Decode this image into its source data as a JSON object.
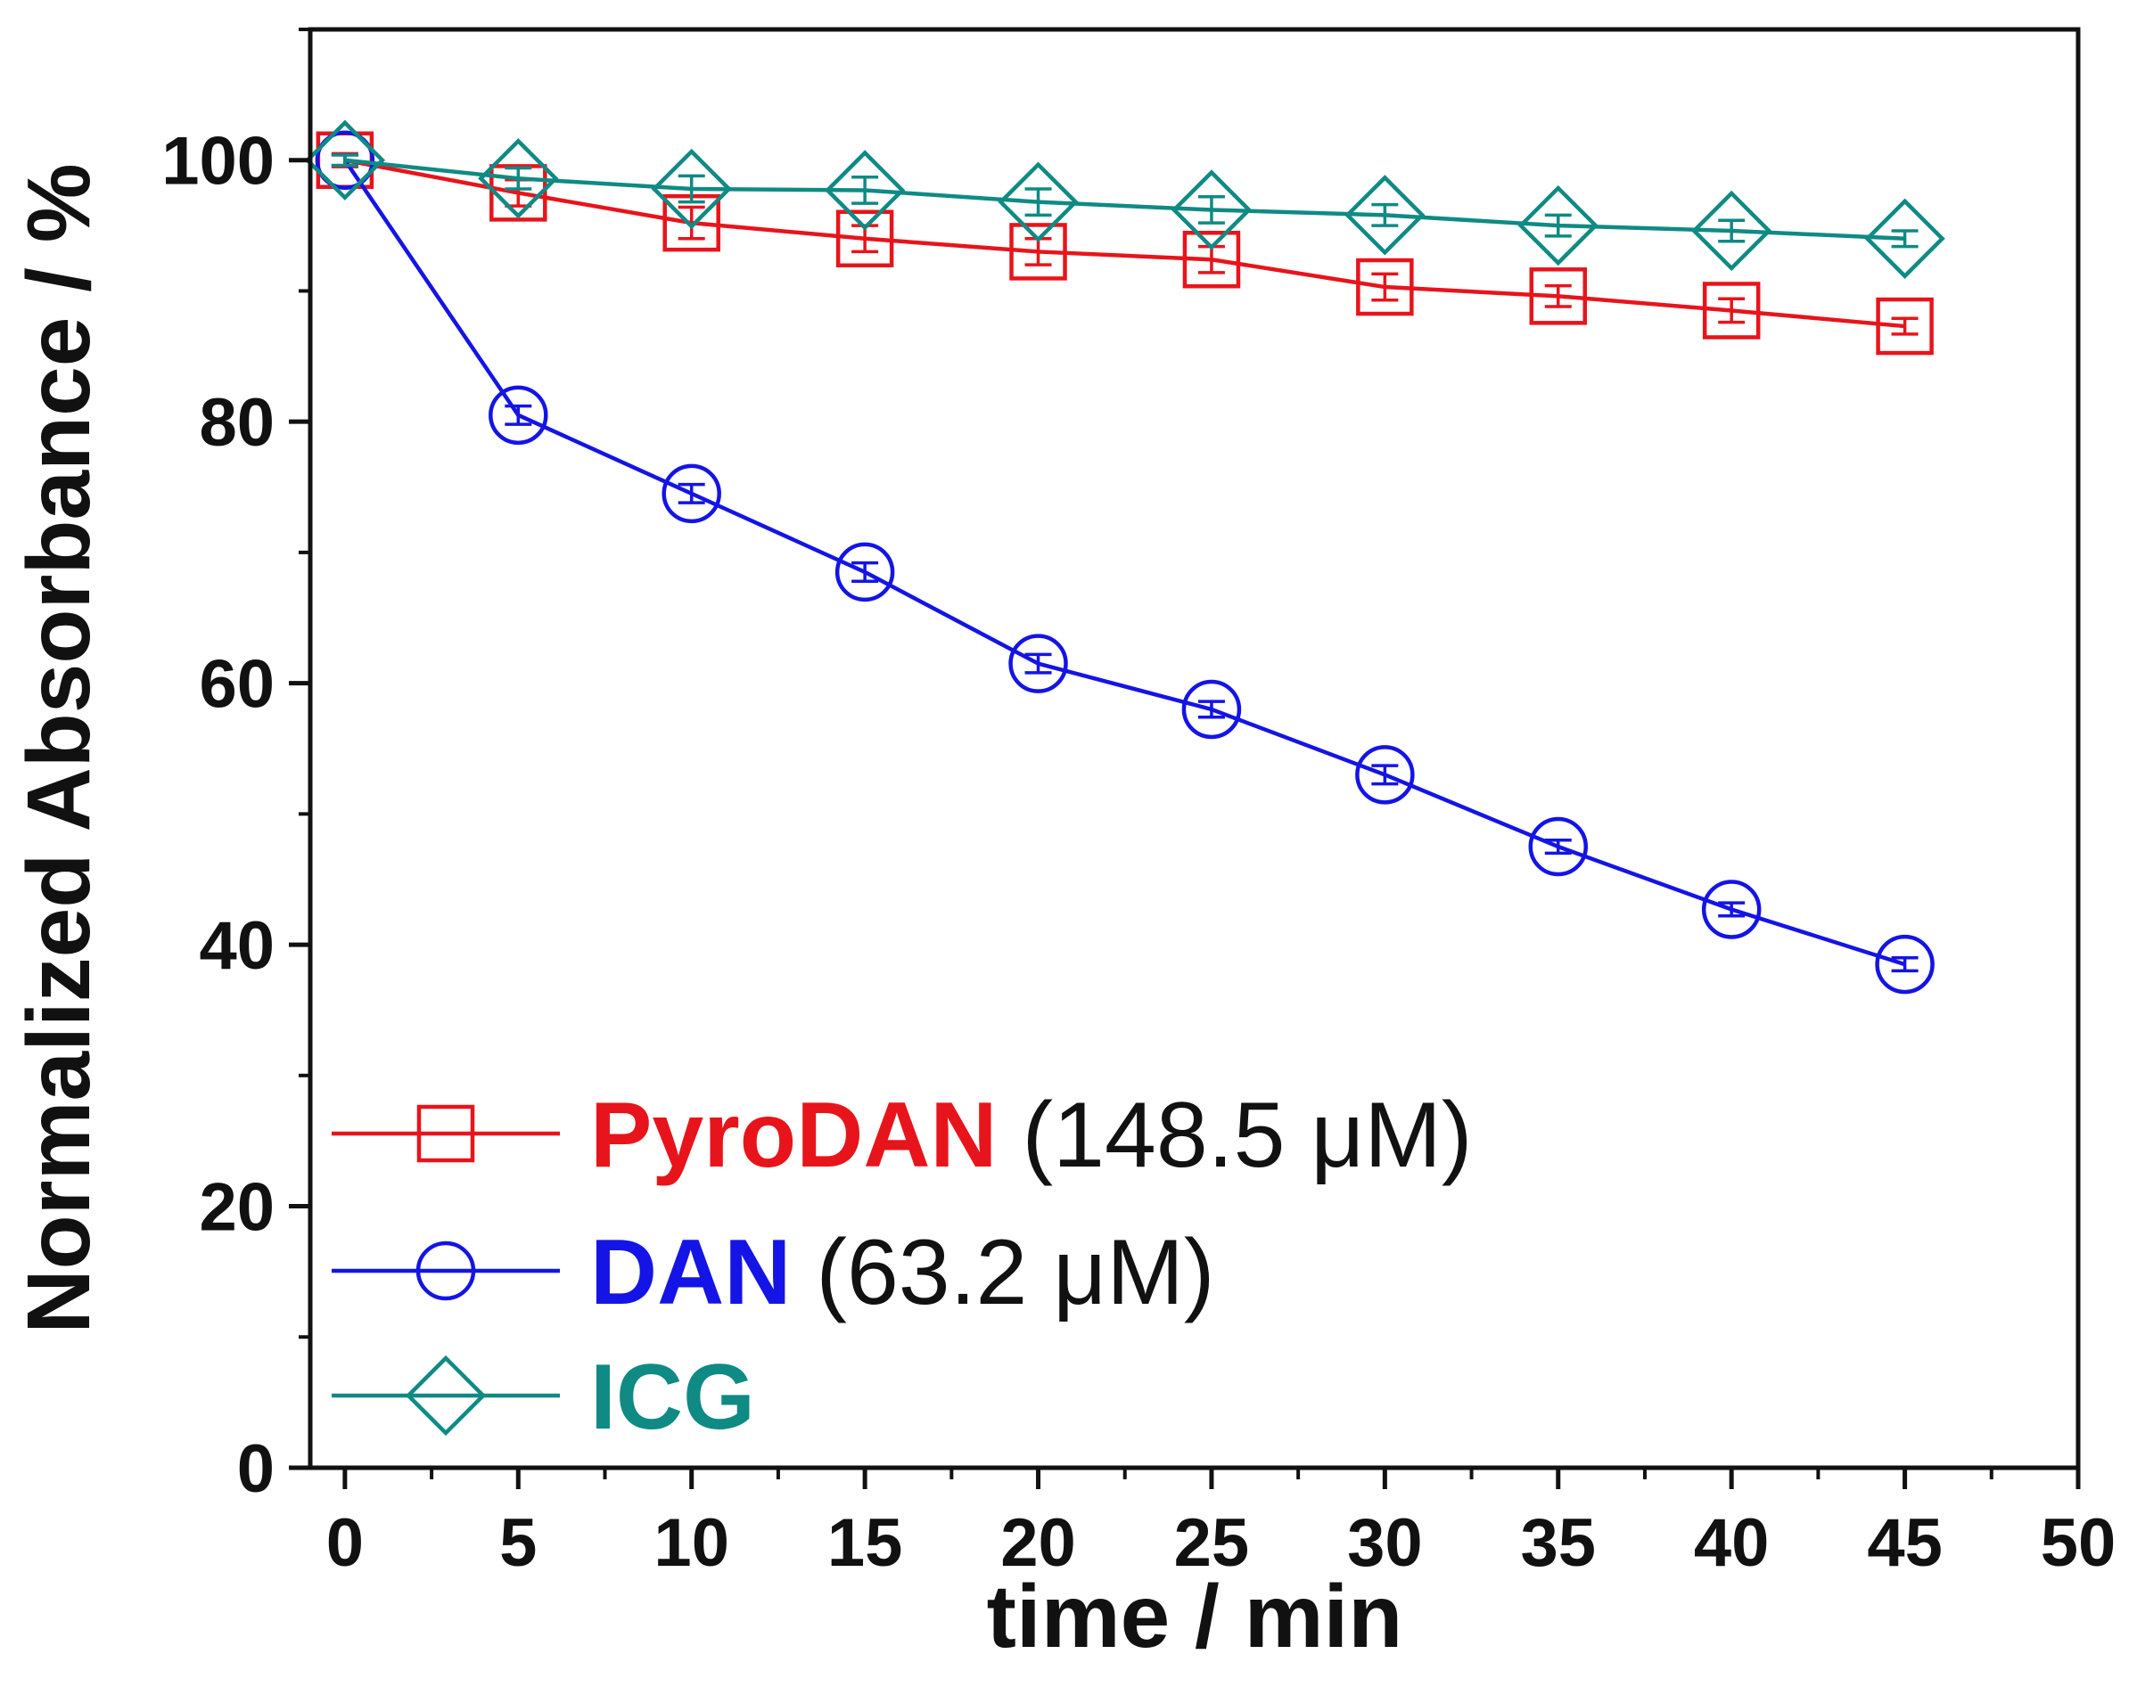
{
  "chart_data": {
    "type": "line",
    "title": "",
    "xlabel": "time / min",
    "ylabel": "Normalized Absorbance / %",
    "xlim": [
      -1,
      50
    ],
    "ylim": [
      0,
      110
    ],
    "x_ticks": [
      0,
      5,
      10,
      15,
      20,
      25,
      30,
      35,
      40,
      45,
      50
    ],
    "y_ticks": [
      0,
      20,
      40,
      60,
      80,
      100
    ],
    "x_tick_labels": [
      "0",
      "5",
      "10",
      "15",
      "20",
      "25",
      "30",
      "35",
      "40",
      "45",
      "50"
    ],
    "y_tick_labels": [
      "0",
      "20",
      "40",
      "60",
      "80",
      "100"
    ],
    "grid": false,
    "legend_position": "bottom-left",
    "x": [
      0,
      5,
      10,
      15,
      20,
      25,
      30,
      35,
      40,
      45
    ],
    "series": [
      {
        "name": "PyroDAN",
        "concentration": "(148.5 μM)",
        "marker": "square",
        "color": "#e8141b",
        "values": [
          100,
          97.5,
          95.2,
          94.0,
          93.0,
          92.4,
          90.3,
          89.6,
          88.5,
          87.3
        ],
        "errors": [
          0.5,
          1.0,
          1.2,
          1.0,
          1.0,
          1.0,
          1.0,
          0.8,
          0.9,
          0.6
        ]
      },
      {
        "name": "DAN",
        "concentration": "(63.2 μM)",
        "marker": "circle",
        "color": "#1414e6",
        "values": [
          100,
          80.5,
          74.5,
          68.5,
          61.5,
          58.0,
          53.0,
          47.5,
          42.7,
          38.5
        ],
        "errors": [
          0.4,
          0.7,
          0.7,
          0.7,
          0.7,
          0.6,
          0.7,
          0.5,
          0.5,
          0.5
        ]
      },
      {
        "name": "ICG",
        "concentration": "",
        "marker": "diamond",
        "color": "#0f8a84",
        "values": [
          100,
          98.6,
          97.8,
          97.7,
          96.8,
          96.2,
          95.8,
          95.0,
          94.6,
          94.0
        ],
        "errors": [
          0.4,
          0.8,
          1.0,
          1.0,
          1.0,
          1.0,
          0.8,
          0.8,
          0.8,
          0.6
        ]
      }
    ]
  }
}
